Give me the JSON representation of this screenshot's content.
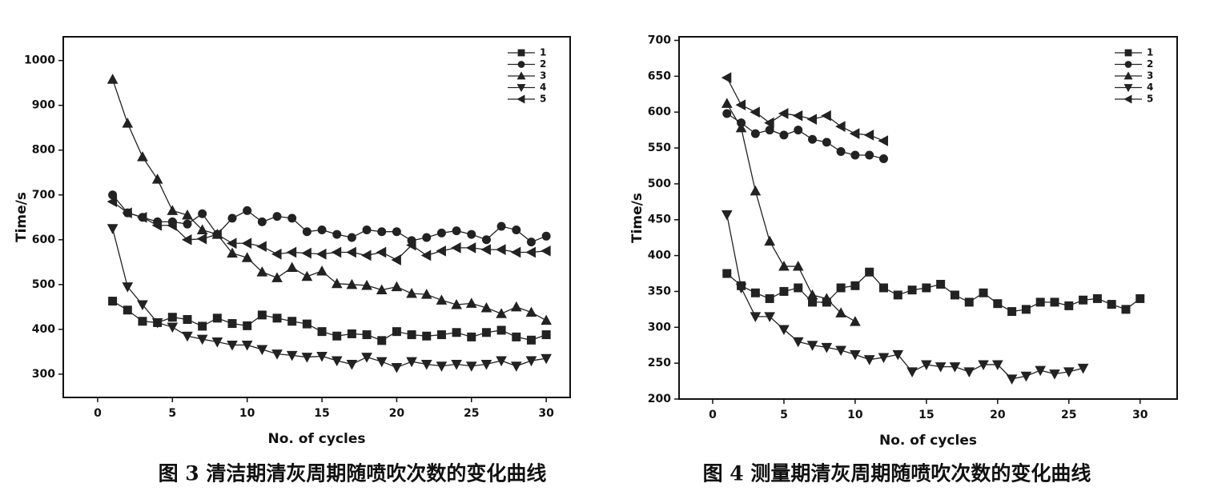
{
  "chart_data": [
    {
      "type": "line",
      "title": "图 3 清洁期清灰周期随喷吹次数的变化曲线",
      "x_label": "No. of cycles",
      "y_label": "Time/s",
      "x": [
        1,
        2,
        3,
        4,
        5,
        6,
        7,
        8,
        9,
        10,
        11,
        12,
        13,
        14,
        15,
        16,
        17,
        18,
        19,
        20,
        21,
        22,
        23,
        24,
        25,
        26,
        27,
        28,
        29,
        30
      ],
      "xlim": [
        -2.3,
        31.6
      ],
      "xticks": [
        0,
        5,
        10,
        15,
        20,
        25,
        30
      ],
      "ylim": [
        248,
        1053
      ],
      "yticks": [
        300,
        400,
        500,
        600,
        700,
        800,
        900,
        1000
      ],
      "legend": "upper right",
      "series": [
        {
          "name": "1",
          "color": "#222222",
          "marker": "square",
          "values": [
            463,
            443,
            418,
            415,
            427,
            422,
            407,
            425,
            413,
            408,
            432,
            425,
            418,
            412,
            395,
            385,
            390,
            388,
            375,
            395,
            388,
            385,
            388,
            393,
            383,
            393,
            398,
            383,
            376,
            388
          ]
        },
        {
          "name": "2",
          "color": "#222222",
          "marker": "circle",
          "values": [
            700,
            660,
            650,
            640,
            640,
            635,
            658,
            612,
            648,
            665,
            640,
            652,
            648,
            618,
            622,
            612,
            605,
            622,
            618,
            618,
            598,
            605,
            615,
            620,
            612,
            600,
            630,
            622,
            595,
            608
          ]
        },
        {
          "name": "3",
          "color": "#222222",
          "marker": "triangle-up",
          "values": [
            958,
            860,
            785,
            735,
            665,
            655,
            622,
            612,
            570,
            560,
            528,
            515,
            538,
            518,
            530,
            502,
            500,
            498,
            488,
            495,
            480,
            478,
            465,
            455,
            458,
            448,
            435,
            450,
            438,
            420
          ]
        },
        {
          "name": "4",
          "color": "#222222",
          "marker": "triangle-down",
          "values": [
            625,
            495,
            455,
            415,
            405,
            385,
            378,
            372,
            365,
            365,
            355,
            345,
            342,
            338,
            340,
            330,
            322,
            338,
            328,
            315,
            328,
            322,
            318,
            322,
            318,
            322,
            330,
            318,
            330,
            335
          ]
        },
        {
          "name": "5",
          "color": "#222222",
          "marker": "triangle-left",
          "values": [
            685,
            660,
            650,
            632,
            632,
            600,
            602,
            612,
            592,
            592,
            585,
            568,
            572,
            570,
            568,
            572,
            572,
            565,
            572,
            555,
            588,
            565,
            575,
            582,
            582,
            578,
            578,
            572,
            572,
            575
          ]
        }
      ]
    },
    {
      "type": "line",
      "title": "图 4 测量期清灰周期随喷吹次数的变化曲线",
      "x_label": "No. of cycles",
      "y_label": "Time/s",
      "x": [
        1,
        2,
        3,
        4,
        5,
        6,
        7,
        8,
        9,
        10,
        11,
        12,
        13,
        14,
        15,
        16,
        17,
        18,
        19,
        20,
        21,
        22,
        23,
        24,
        25,
        26,
        27,
        28,
        29,
        30
      ],
      "xlim": [
        -2.36,
        32.6
      ],
      "xticks": [
        0,
        5,
        10,
        15,
        20,
        25,
        30
      ],
      "ylim": [
        200,
        705
      ],
      "yticks": [
        200,
        250,
        300,
        350,
        400,
        450,
        500,
        550,
        600,
        650,
        700
      ],
      "legend": "upper right",
      "series": [
        {
          "name": "1",
          "color": "#222222",
          "marker": "square",
          "values": [
            375,
            358,
            348,
            340,
            350,
            355,
            335,
            335,
            355,
            358,
            377,
            355,
            345,
            352,
            355,
            360,
            345,
            335,
            348,
            333,
            322,
            325,
            335,
            335,
            330,
            338,
            340,
            332,
            325,
            340
          ]
        },
        {
          "name": "2",
          "color": "#222222",
          "marker": "circle",
          "values": [
            598,
            585,
            570,
            575,
            568,
            575,
            562,
            558,
            545,
            540,
            540,
            535,
            null,
            null,
            null,
            null,
            null,
            null,
            null,
            null,
            null,
            null,
            null,
            null,
            null,
            null,
            null,
            null,
            null,
            null
          ]
        },
        {
          "name": "3",
          "color": "#222222",
          "marker": "triangle-up",
          "values": [
            612,
            578,
            490,
            420,
            385,
            385,
            345,
            340,
            320,
            308,
            null,
            null,
            null,
            null,
            null,
            null,
            null,
            null,
            null,
            null,
            null,
            null,
            null,
            null,
            null,
            null,
            null,
            null,
            null,
            null
          ]
        },
        {
          "name": "4",
          "color": "#222222",
          "marker": "triangle-down",
          "values": [
            457,
            355,
            315,
            315,
            297,
            280,
            275,
            272,
            268,
            262,
            255,
            258,
            262,
            238,
            248,
            245,
            245,
            238,
            248,
            248,
            228,
            232,
            240,
            235,
            238,
            243,
            null,
            null,
            null,
            null
          ]
        },
        {
          "name": "5",
          "color": "#222222",
          "marker": "triangle-left",
          "values": [
            648,
            610,
            600,
            585,
            598,
            595,
            590,
            595,
            580,
            570,
            568,
            560,
            null,
            null,
            null,
            null,
            null,
            null,
            null,
            null,
            null,
            null,
            null,
            null,
            null,
            null,
            null,
            null,
            null,
            null
          ]
        }
      ]
    }
  ]
}
